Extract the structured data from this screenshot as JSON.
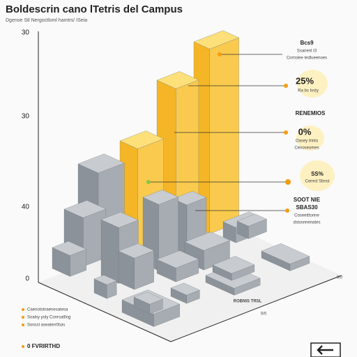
{
  "header": {
    "title": "Boldescrin cano lTetris del Campus",
    "subtitle": "Dgenoe Stl Nergoctloml hamtrs/ ISeia"
  },
  "axis": {
    "labels": [
      "30",
      "30",
      "40",
      "0"
    ]
  },
  "callouts": [
    {
      "title": "Bcs9",
      "lines": [
        "Ssanenl I3",
        "Cornslee tedlueenoes"
      ]
    },
    {
      "percent": "25%",
      "text": "Ra bs Ivsty"
    },
    {
      "title": "RENEMIOS"
    },
    {
      "percent": "0%",
      "text": "Oasey trinto",
      "sub": "Cenoseomes"
    },
    {
      "percent": "SS%",
      "text": "Cemrd Sbnst"
    },
    {
      "title": "SOOT NIE",
      "lines": [
        "SBAS30",
        "Coseetttonne",
        "dstosnnenates"
      ]
    }
  ],
  "base": {
    "labels": [
      "ROBNIS TRSL",
      "0/0",
      "0/0"
    ]
  },
  "legend": [
    "Caenotstnaenesatesa",
    "Soalsy yoly Conrsatllng",
    "Soncsl aseaterr0tuis"
  ],
  "footer": {
    "note": "0 FVRIRTHD"
  }
}
